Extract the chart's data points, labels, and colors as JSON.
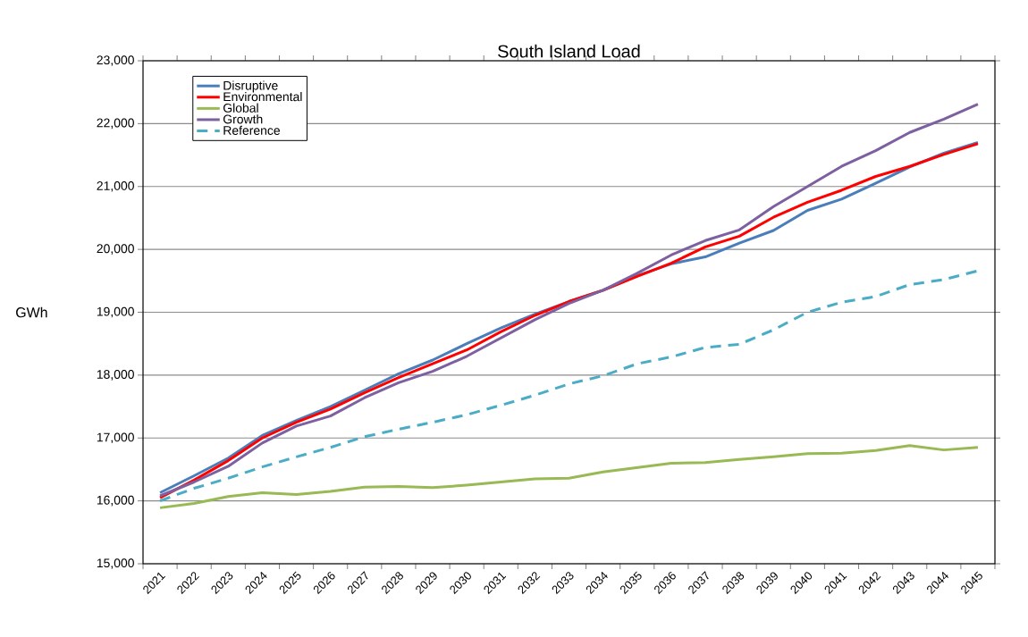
{
  "chart_data": {
    "type": "line",
    "title": "South Island Load",
    "ylabel": "GWh",
    "categories": [
      "2021",
      "2022",
      "2023",
      "2024",
      "2025",
      "2026",
      "2027",
      "2028",
      "2029",
      "2030",
      "2031",
      "2032",
      "2033",
      "2034",
      "2035",
      "2036",
      "2037",
      "2038",
      "2039",
      "2040",
      "2041",
      "2042",
      "2043",
      "2044",
      "2045"
    ],
    "series": [
      {
        "name": "Disruptive",
        "color": "#4a7ebb",
        "values": [
          16130,
          16400,
          16680,
          17040,
          17280,
          17500,
          17760,
          18020,
          18240,
          18500,
          18750,
          18970,
          19170,
          19350,
          19580,
          19770,
          19880,
          20100,
          20300,
          20620,
          20800,
          21050,
          21310,
          21530,
          21700
        ]
      },
      {
        "name": "Environmental",
        "color": "#ff0000",
        "values": [
          16050,
          16330,
          16640,
          17000,
          17250,
          17460,
          17720,
          17960,
          18180,
          18400,
          18690,
          18950,
          19170,
          19350,
          19570,
          19780,
          20040,
          20210,
          20510,
          20750,
          20940,
          21160,
          21320,
          21510,
          21680
        ]
      },
      {
        "name": "Global",
        "color": "#98b954",
        "values": [
          15890,
          15960,
          16070,
          16130,
          16100,
          16150,
          16220,
          16230,
          16210,
          16250,
          16300,
          16350,
          16360,
          16460,
          16530,
          16600,
          16610,
          16660,
          16700,
          16750,
          16760,
          16800,
          16880,
          16810,
          16850
        ]
      },
      {
        "name": "Growth",
        "color": "#7d60a0",
        "values": [
          16080,
          16300,
          16550,
          16920,
          17190,
          17350,
          17640,
          17880,
          18060,
          18300,
          18590,
          18880,
          19140,
          19350,
          19620,
          19910,
          20140,
          20310,
          20680,
          21000,
          21320,
          21570,
          21860,
          22070,
          22310
        ]
      },
      {
        "name": "Reference",
        "color": "#4bacc6",
        "line_style": "dashed",
        "values": [
          16000,
          16200,
          16360,
          16540,
          16700,
          16850,
          17020,
          17140,
          17250,
          17370,
          17520,
          17680,
          17860,
          17990,
          18180,
          18290,
          18440,
          18490,
          18720,
          19000,
          19160,
          19250,
          19440,
          19520,
          19660
        ]
      }
    ],
    "ylim": [
      15000,
      23000
    ],
    "yticks": [
      {
        "value": 15000,
        "label": "15,000"
      },
      {
        "value": 16000,
        "label": "16,000"
      },
      {
        "value": 17000,
        "label": "17,000"
      },
      {
        "value": 18000,
        "label": "18,000"
      },
      {
        "value": 19000,
        "label": "19,000"
      },
      {
        "value": 20000,
        "label": "20,000"
      },
      {
        "value": 21000,
        "label": "21,000"
      },
      {
        "value": 22000,
        "label": "22,000"
      },
      {
        "value": 23000,
        "label": "23,000"
      }
    ],
    "grid": "y",
    "legend": "top left",
    "marker": "none",
    "line_style": "solid"
  }
}
